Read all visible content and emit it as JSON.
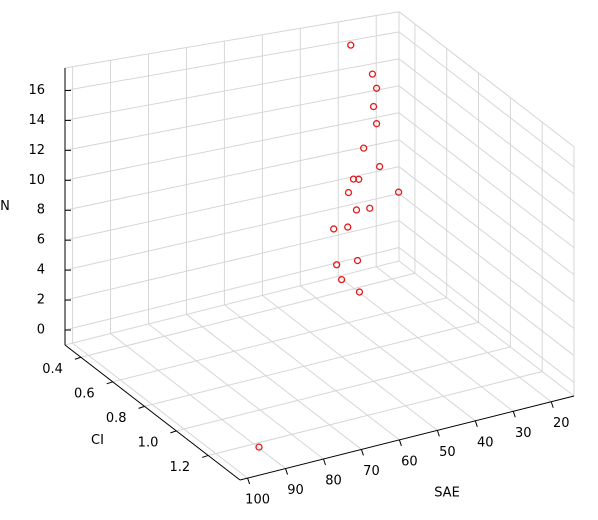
{
  "chart_data": {
    "type": "scatter3d",
    "x_label": "SAE",
    "y_label": "CI",
    "z_label": "N",
    "x": [
      28.8,
      23.1,
      22,
      22.8,
      22,
      25.4,
      21.2,
      28.1,
      26.7,
      29.4,
      16.2,
      27.3,
      23.8,
      33.3,
      29.6,
      43,
      37.5,
      41.7,
      37,
      92.8
    ],
    "y": [
      0.35,
      0.35,
      0.35,
      0.35,
      0.35,
      0.35,
      0.35,
      0.35,
      0.35,
      0.35,
      0.35,
      0.35,
      0.35,
      0.35,
      0.35,
      0.6,
      0.6,
      0.6,
      0.6,
      1.3
    ],
    "z": [
      16.2,
      13.8,
      12.7,
      11.4,
      10.1,
      8.5,
      6.9,
      6.4,
      6.3,
      5.5,
      4.7,
      4.1,
      4.0,
      3.1,
      3.0,
      3.35,
      3.3,
      2.2,
      1.0,
      -0.2
    ],
    "color": "#e41a1c",
    "xlim": [
      14,
      102
    ],
    "ylim": [
      0.3,
      1.4
    ],
    "zlim": [
      -1,
      17.5
    ],
    "xticks": [
      20,
      30,
      40,
      50,
      60,
      70,
      80,
      90,
      100
    ],
    "yticks": [
      0.4,
      0.6,
      0.8,
      {
        "value": 1,
        "label": "1.0"
      },
      1.2
    ],
    "zticks": [
      0,
      2,
      4,
      6,
      8,
      10,
      12,
      14,
      16
    ],
    "grid": true
  }
}
